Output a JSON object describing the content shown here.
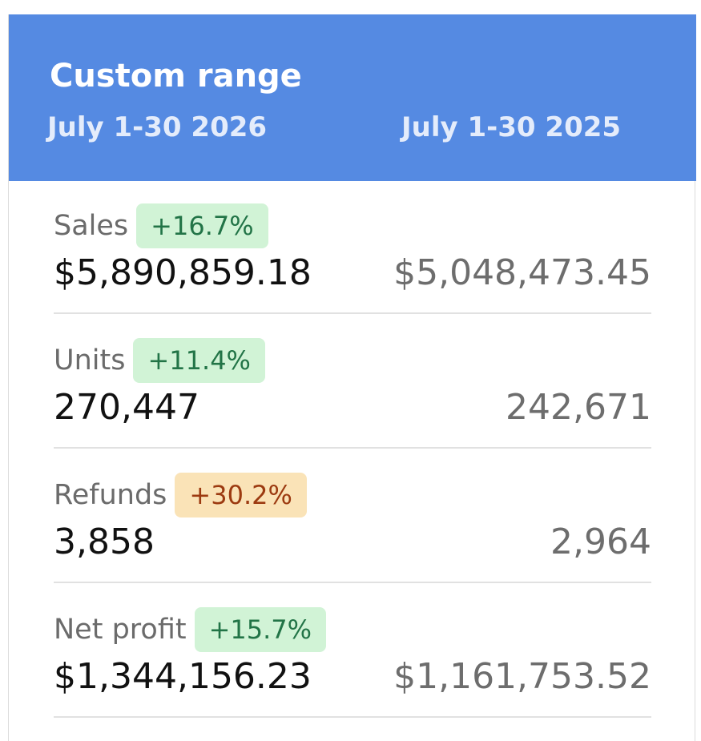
{
  "header": {
    "title": "Custom range",
    "current_period": "July 1-30 2026",
    "previous_period": "July 1-30 2025"
  },
  "metrics": [
    {
      "label": "Sales",
      "change": "+16.7%",
      "change_status": "positive",
      "current": "$5,890,859.18",
      "previous": "$5,048,473.45"
    },
    {
      "label": "Units",
      "change": "+11.4%",
      "change_status": "positive",
      "current": "270,447",
      "previous": "242,671"
    },
    {
      "label": "Refunds",
      "change": "+30.2%",
      "change_status": "warning",
      "current": "3,858",
      "previous": "2,964"
    },
    {
      "label": "Net profit",
      "change": "+15.7%",
      "change_status": "positive",
      "current": "$1,344,156.23",
      "previous": "$1,161,753.52"
    }
  ],
  "colors": {
    "header_background": "#558ae2",
    "positive_badge_background": "#d1f3d6",
    "positive_badge_text": "#227447",
    "warning_badge_background": "#fae3b7",
    "warning_badge_text": "#9c3a10"
  }
}
